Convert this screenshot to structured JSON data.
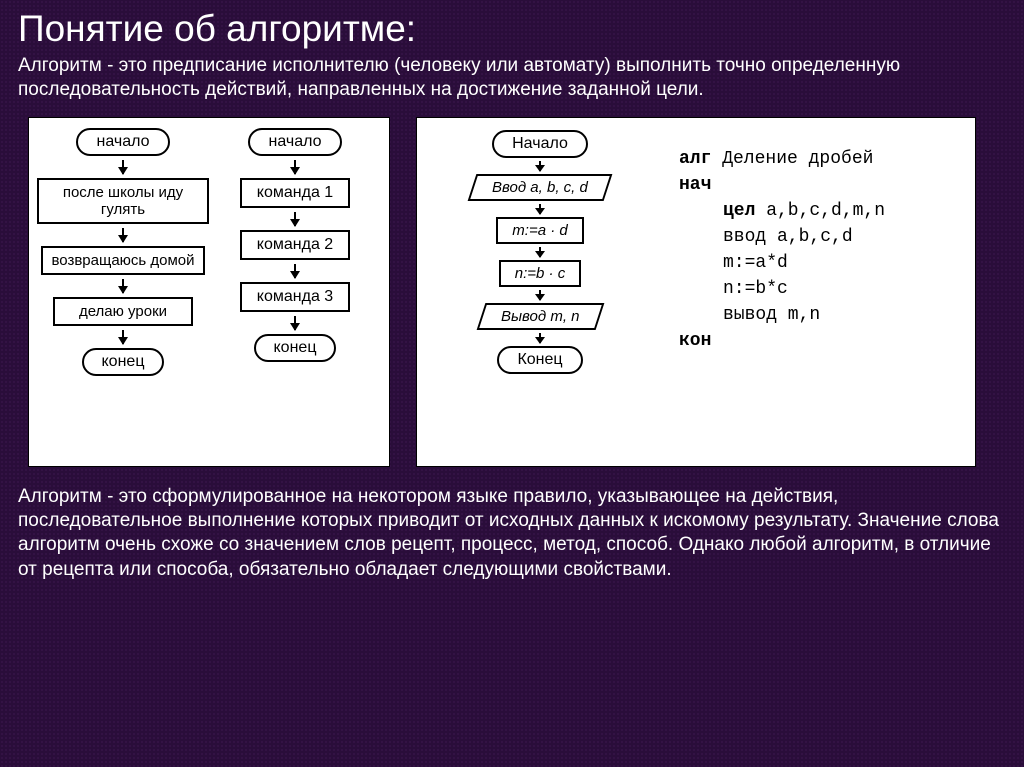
{
  "title": "Понятие об алгоритме:",
  "intro": "Алгоритм - это предписание исполнителю (человеку или автомату) выполнить точно определенную последовательность действий, направленных на достижение заданной цели.",
  "outro": "Алгоритм - это сформулированное на некотором языке правило, указывающее на действия, последовательное выполнение которых приводит от исходных данных к искомому результату. Значение слова алгоритм очень схоже со значением слов рецепт, процесс, метод, способ. Однако любой алгоритм, в отличие от рецепта или способа, обязательно обладает следующими свойствами.",
  "flow1": {
    "start": "начало",
    "steps": [
      "после школы иду гулять",
      "возвращаюсь домой",
      "делаю уроки"
    ],
    "end": "конец"
  },
  "flow2": {
    "start": "начало",
    "steps": [
      "команда 1",
      "команда 2",
      "команда 3"
    ],
    "end": "конец"
  },
  "flow3": {
    "start": "Начало",
    "input": "Ввод a, b, c, d",
    "p1": "m:=a · d",
    "p2": "n:=b · c",
    "output": "Вывод m, n",
    "end": "Конец"
  },
  "pseudo": {
    "l1": "алг",
    "l1b": " Деление дробей",
    "l2": "нач",
    "l3": "цел",
    "l3b": " a,b,c,d,m,n",
    "l4": "ввод a,b,c,d",
    "l5": "m:=a*d",
    "l6": "n:=b*c",
    "l7": "вывод m,n",
    "l8": "кон"
  },
  "colors": {
    "background": "#2a0d3a",
    "text": "#ffffff",
    "panel_bg": "#ffffff",
    "diagram_stroke": "#000000"
  },
  "fontsize": {
    "title": 37,
    "body": 19,
    "node": 16,
    "pseudo": 18
  }
}
